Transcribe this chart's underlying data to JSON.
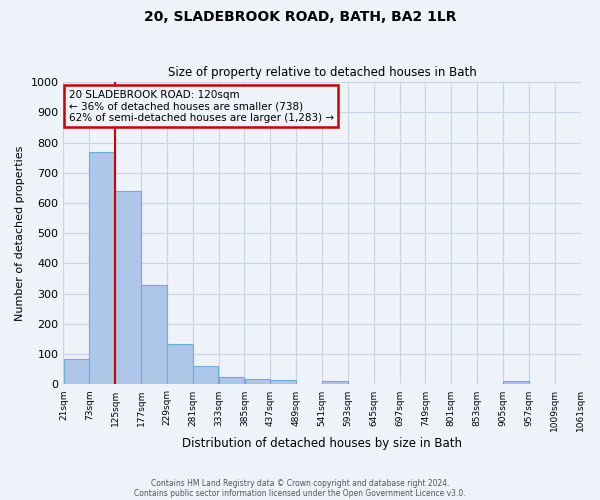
{
  "title": "20, SLADEBROOK ROAD, BATH, BA2 1LR",
  "subtitle": "Size of property relative to detached houses in Bath",
  "xlabel": "Distribution of detached houses by size in Bath",
  "ylabel": "Number of detached properties",
  "bar_left_edges": [
    21,
    73,
    125,
    177,
    229,
    281,
    333,
    385,
    437,
    489,
    541,
    593,
    645,
    697,
    749,
    801,
    853,
    905,
    957,
    1009
  ],
  "bar_heights": [
    85,
    770,
    640,
    330,
    135,
    60,
    25,
    18,
    14,
    0,
    10,
    0,
    0,
    0,
    0,
    0,
    0,
    10,
    0,
    0
  ],
  "bin_width": 52,
  "bar_color": "#aec6e8",
  "bar_edge_color": "#6baed6",
  "vline_x": 125,
  "vline_color": "#cc0000",
  "ylim": [
    0,
    1000
  ],
  "yticks": [
    0,
    100,
    200,
    300,
    400,
    500,
    600,
    700,
    800,
    900,
    1000
  ],
  "xtick_labels": [
    "21sqm",
    "73sqm",
    "125sqm",
    "177sqm",
    "229sqm",
    "281sqm",
    "333sqm",
    "385sqm",
    "437sqm",
    "489sqm",
    "541sqm",
    "593sqm",
    "645sqm",
    "697sqm",
    "749sqm",
    "801sqm",
    "853sqm",
    "905sqm",
    "957sqm",
    "1009sqm",
    "1061sqm"
  ],
  "annotation_title": "20 SLADEBROOK ROAD: 120sqm",
  "annotation_line1": "← 36% of detached houses are smaller (738)",
  "annotation_line2": "62% of semi-detached houses are larger (1,283) →",
  "annotation_box_color": "#cc0000",
  "footer_line1": "Contains HM Land Registry data © Crown copyright and database right 2024.",
  "footer_line2": "Contains public sector information licensed under the Open Government Licence v3.0.",
  "background_color": "#eef2f9",
  "grid_color": "#c8d4e8"
}
